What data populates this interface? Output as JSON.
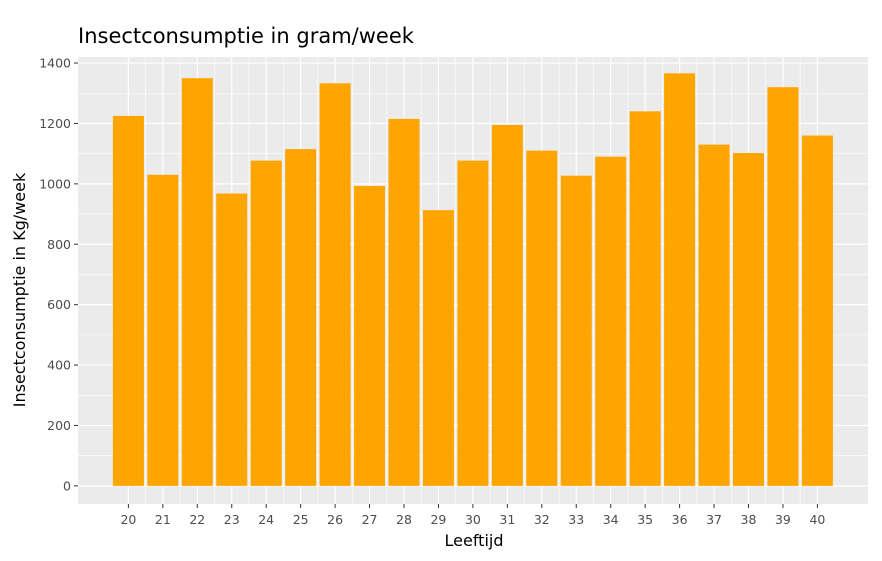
{
  "chart_data": {
    "type": "bar",
    "title": "Insectconsumptie in gram/week",
    "xlabel": "Leeftijd",
    "ylabel": "Insectconsumptie in Kg/week",
    "categories": [
      "20",
      "21",
      "22",
      "23",
      "24",
      "25",
      "26",
      "27",
      "28",
      "29",
      "30",
      "31",
      "32",
      "33",
      "34",
      "35",
      "36",
      "37",
      "38",
      "39",
      "40"
    ],
    "values": [
      1225,
      1030,
      1350,
      968,
      1077,
      1115,
      1333,
      993,
      1215,
      913,
      1077,
      1195,
      1110,
      1027,
      1090,
      1240,
      1366,
      1130,
      1102,
      1320,
      1160
    ],
    "ylim": [
      -60,
      1420
    ],
    "yticks": [
      0,
      200,
      400,
      600,
      800,
      1000,
      1200,
      1400
    ],
    "grid": true,
    "legend": "none",
    "bar_color": "#FFA500",
    "panel_background": "#EBEBEB",
    "grid_color": "#FFFFFF"
  }
}
